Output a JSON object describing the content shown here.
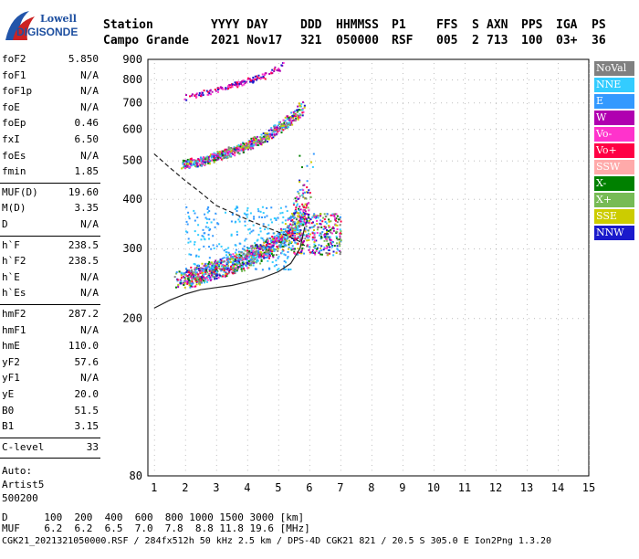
{
  "logo": {
    "line1": "Lowell",
    "line2": "DIGISONDE"
  },
  "header": {
    "col1": {
      "h": "Station",
      "v": "Campo Grande"
    },
    "col2": {
      "h": "YYYY DAY",
      "v": "2021 Nov17"
    },
    "col3": {
      "h": "DDD",
      "v": "321"
    },
    "col4": {
      "h": "HHMMSS",
      "v": "050000"
    },
    "col5": {
      "h": "P1",
      "v": "RSF"
    },
    "col6": {
      "h": "FFS",
      "v": "005"
    },
    "col7": {
      "h": "S",
      "v": "2"
    },
    "col8": {
      "h": "AXN",
      "v": "713"
    },
    "col9": {
      "h": "PPS",
      "v": "100"
    },
    "col10": {
      "h": "IGA",
      "v": "03+"
    },
    "col11": {
      "h": "PS",
      "v": "36"
    }
  },
  "params": {
    "g1": [
      {
        "label": "foF2",
        "value": "5.850"
      },
      {
        "label": "foF1",
        "value": "N/A"
      },
      {
        "label": "foF1p",
        "value": "N/A"
      },
      {
        "label": "foE",
        "value": "N/A"
      },
      {
        "label": "foEp",
        "value": "0.46"
      },
      {
        "label": "fxI",
        "value": "6.50"
      },
      {
        "label": "foEs",
        "value": "N/A"
      },
      {
        "label": "fmin",
        "value": "1.85"
      }
    ],
    "g2": [
      {
        "label": "MUF(D)",
        "value": "19.60"
      },
      {
        "label": "M(D)",
        "value": "3.35"
      },
      {
        "label": "D",
        "value": "N/A"
      }
    ],
    "g3": [
      {
        "label": "h`F",
        "value": "238.5"
      },
      {
        "label": "h`F2",
        "value": "238.5"
      },
      {
        "label": "h`E",
        "value": "N/A"
      },
      {
        "label": "h`Es",
        "value": "N/A"
      }
    ],
    "g4": [
      {
        "label": "hmF2",
        "value": "287.2"
      },
      {
        "label": "hmF1",
        "value": "N/A"
      },
      {
        "label": "hmE",
        "value": "110.0"
      },
      {
        "label": "yF2",
        "value": "57.6"
      },
      {
        "label": "yF1",
        "value": "N/A"
      },
      {
        "label": "yE",
        "value": "20.0"
      },
      {
        "label": "B0",
        "value": "51.5"
      },
      {
        "label": "B1",
        "value": "3.15"
      }
    ],
    "g5": [
      {
        "label": "C-level",
        "value": "33"
      }
    ],
    "auto": [
      "Auto:",
      "Artist5",
      "500200"
    ]
  },
  "legend": [
    {
      "label": "NoVal",
      "color": "#808080"
    },
    {
      "label": "NNE",
      "color": "#33ccff"
    },
    {
      "label": "E",
      "color": "#3399ff"
    },
    {
      "label": "W",
      "color": "#b000b0"
    },
    {
      "label": "Vo-",
      "color": "#ff33cc"
    },
    {
      "label": "Vo+",
      "color": "#ff0044"
    },
    {
      "label": "SSW",
      "color": "#ffaaaa"
    },
    {
      "label": "X-",
      "color": "#008000"
    },
    {
      "label": "X+",
      "color": "#77bb55"
    },
    {
      "label": "SSE",
      "color": "#cccc00"
    },
    {
      "label": "NNW",
      "color": "#1a1acc"
    }
  ],
  "footer": {
    "row1": "D      100  200  400  600  800 1000 1500 3000 [km]",
    "row2": "MUF    6.2  6.2  6.5  7.0  7.8  8.8 11.8 19.6 [MHz]",
    "row3": "CGK21_2021321050000.RSF / 284fx512h 50 kHz 2.5 km / DPS-4D CGK21 821 / 20.5 S 305.0 E Ion2Png 1.3.20"
  },
  "chart_data": {
    "type": "scatter",
    "xlim": [
      0.8,
      15
    ],
    "ylim": [
      80,
      900
    ],
    "xticks": [
      "1",
      "2",
      "3",
      "4",
      "5",
      "6",
      "7",
      "8",
      "9",
      "10",
      "11",
      "12",
      "13",
      "14",
      "15"
    ],
    "yticks": [
      "80",
      "200",
      "300",
      "400",
      "500",
      "600",
      "700",
      "800",
      "900"
    ],
    "ytick_values": [
      80,
      200,
      300,
      400,
      500,
      600,
      700,
      800,
      900
    ],
    "y_scale": "log",
    "profile_curve": {
      "x": [
        1.0,
        1.5,
        2.0,
        2.5,
        3.0,
        3.5,
        4.0,
        4.5,
        5.0,
        5.4,
        5.7,
        5.85
      ],
      "y": [
        212,
        222,
        230,
        236,
        239,
        242,
        247,
        253,
        262,
        275,
        300,
        340
      ]
    },
    "dashed_curve": {
      "x": [
        1.0,
        1.5,
        2.0,
        2.5,
        3.0,
        3.5,
        4.0,
        4.5,
        5.0,
        5.4,
        5.7,
        5.85
      ],
      "y": [
        520,
        480,
        445,
        415,
        385,
        370,
        355,
        342,
        330,
        320,
        312,
        305
      ]
    },
    "f2_trace": {
      "x": [
        1.85,
        2.5,
        3.0,
        3.5,
        4.0,
        4.5,
        5.0,
        5.3,
        5.6,
        5.8,
        5.9
      ],
      "y": [
        245,
        255,
        262,
        270,
        280,
        292,
        305,
        320,
        345,
        400,
        500
      ]
    },
    "f2_multi": {
      "x": [
        1.95,
        2.5,
        3.0,
        3.5,
        4.0,
        4.5,
        5.0,
        5.3,
        5.6,
        5.8
      ],
      "y": [
        485,
        495,
        510,
        525,
        545,
        565,
        600,
        625,
        650,
        690
      ]
    },
    "f2_triple": {
      "x": [
        2.0,
        2.5,
        3.0,
        3.5,
        4.0,
        4.5,
        5.0,
        5.2
      ],
      "y": [
        720,
        735,
        750,
        770,
        790,
        815,
        855,
        885
      ]
    }
  }
}
